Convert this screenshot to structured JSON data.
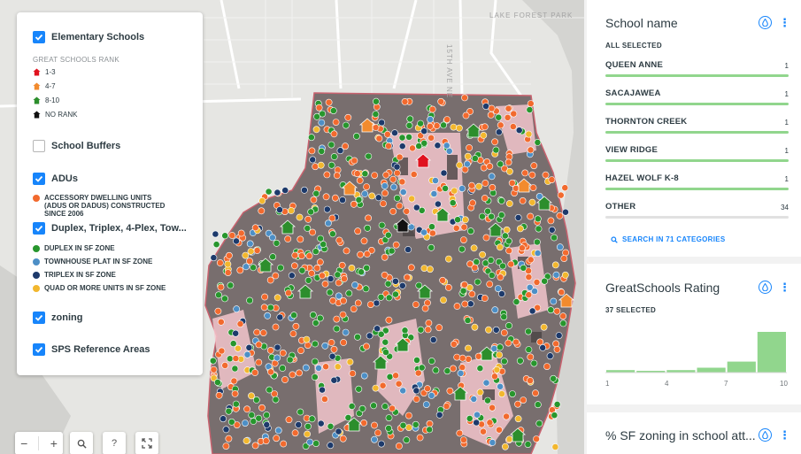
{
  "map": {
    "place_label": "LAKE FOREST PARK",
    "street_label": "15TH AVE NE",
    "colors": {
      "adu": "#f26a2e",
      "duplex": "#27962d",
      "townhouse": "#4d8fc6",
      "triplex": "#1d3a6b",
      "quad": "#f2b72e",
      "rank_1_3": "#e0121f",
      "rank_4_7": "#f28b2e",
      "rank_8_10": "#2c8e2c",
      "no_rank": "#111111"
    }
  },
  "legend": {
    "elementary": {
      "label": "Elementary Schools",
      "checked": true
    },
    "rank_heading": "GREAT SCHOOLS RANK",
    "ranks": [
      {
        "label": "1-3",
        "icon": "school-red-icon"
      },
      {
        "label": "4-7",
        "icon": "school-orange-icon"
      },
      {
        "label": "8-10",
        "icon": "school-green-icon"
      },
      {
        "label": "NO RANK",
        "icon": "school-black-icon"
      }
    ],
    "buffers": {
      "label": "School Buffers",
      "checked": false
    },
    "adus": {
      "label": "ADUs",
      "checked": true
    },
    "adu_key": {
      "line1": "ACCESSORY DWELLING UNITS",
      "line2": "(ADUS OR DADUS) CONSTRUCTED",
      "line3": "SINCE 2006"
    },
    "duplex": {
      "label": "Duplex, Triplex, 4-Plex, Tow...",
      "checked": true
    },
    "duplex_keys": [
      {
        "label": "DUPLEX IN SF ZONE"
      },
      {
        "label": "TOWNHOUSE PLAT IN SF ZONE"
      },
      {
        "label": "TRIPLEX IN SF ZONE"
      },
      {
        "label": "QUAD OR MORE UNITS IN SF ZONE"
      }
    ],
    "zoning": {
      "label": "zoning",
      "checked": true
    },
    "sps": {
      "label": "SPS Reference Areas",
      "checked": true
    }
  },
  "controls": {
    "zoom_out": "−",
    "zoom_in": "+",
    "search_icon": "search-icon",
    "help": "?",
    "fullscreen_icon": "fullscreen-icon"
  },
  "panel": {
    "school_widget": {
      "title": "School name",
      "subtitle": "ALL SELECTED",
      "categories": [
        {
          "name": "QUEEN ANNE",
          "count": "1"
        },
        {
          "name": "SACAJAWEA",
          "count": "1"
        },
        {
          "name": "THORNTON CREEK",
          "count": "1"
        },
        {
          "name": "VIEW RIDGE",
          "count": "1"
        },
        {
          "name": "HAZEL WOLF K-8",
          "count": "1"
        },
        {
          "name": "OTHER",
          "count": "34"
        }
      ],
      "search_label": "SEARCH IN 71 CATEGORIES"
    },
    "rating_widget": {
      "title": "GreatSchools Rating",
      "subtitle": "37 SELECTED",
      "axis_labels": [
        "1",
        "4",
        "7",
        "10"
      ],
      "histogram": [
        0.06,
        0.03,
        0.06,
        0.12,
        0.27,
        1.0
      ],
      "bar_color": "#91d68d"
    },
    "zoning_widget": {
      "title": "% SF zoning in school att..."
    }
  }
}
